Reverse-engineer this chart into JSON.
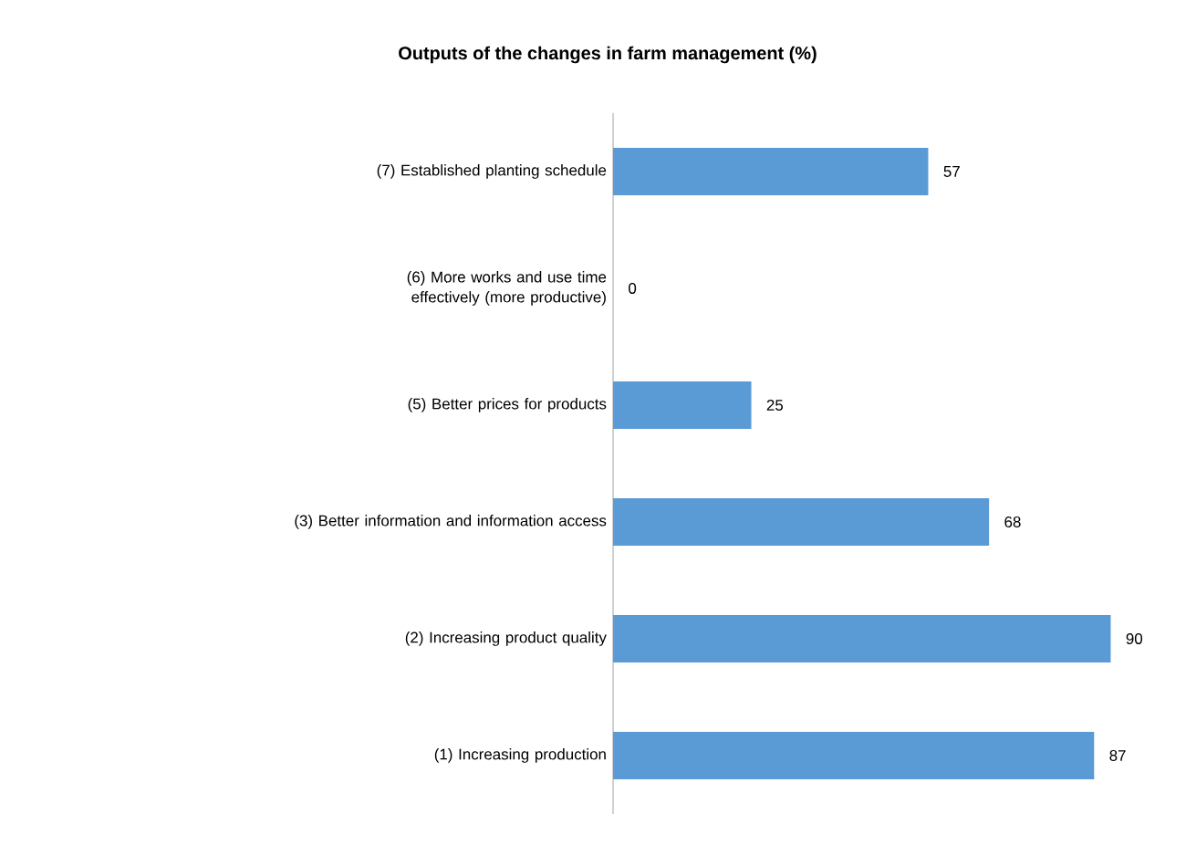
{
  "chart_data": {
    "type": "bar",
    "orientation": "horizontal",
    "title": "Outputs of the changes in farm management (%)",
    "categories": [
      "(7) Established planting schedule",
      "(6) More works and use time effectively (more productive)",
      "(5) Better prices for products",
      "(3) Better information and information access",
      "(2) Increasing product quality",
      "(1) Increasing production"
    ],
    "values": [
      57,
      0,
      25,
      68,
      90,
      87
    ],
    "color": "#5b9bd5",
    "data_labels": true,
    "tick_labels": "y"
  }
}
